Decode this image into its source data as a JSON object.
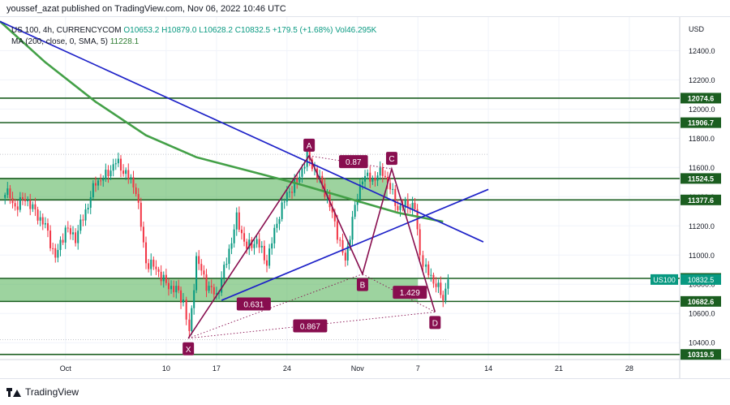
{
  "header": {
    "publisher": "youssef_azat published on TradingView.com, Nov 06, 2022 10:46 UTC"
  },
  "legend": {
    "symbol": "US 100, 4h, CURRENCYCOM",
    "open": "O10653.2",
    "high": "H10879.0",
    "low": "L10628.2",
    "close": "C10832.5",
    "change": "+179.5 (+1.68%)",
    "volume": "Vol46.295K",
    "ma_label": "MA (200, close, 0, SMA, 5)",
    "ma_value": "11228.1"
  },
  "footer": {
    "brand": "TradingView"
  },
  "colors": {
    "up": "#089981",
    "down": "#f23645",
    "zone": "#4caf50",
    "ma": "#43a047",
    "trend": "#1e22c8",
    "pattern": "#880e4f",
    "level_line": "#1b5e20"
  },
  "chart_data": {
    "type": "candlestick",
    "currency": "USD",
    "ylim": [
      10290,
      12630
    ],
    "y_ticks": [
      12400,
      12200,
      12000,
      11800,
      11600,
      11400,
      11200,
      11000,
      10800,
      10600,
      10400
    ],
    "y_tick_labels": [
      "12400.0",
      "12200.0",
      "12000.0",
      "11800.0",
      "11600.0",
      "11400.0",
      "11200.0",
      "11000.0",
      "10800.0",
      "10600.0",
      "10400.0"
    ],
    "x_ticks": [
      {
        "label": "Oct",
        "x": 2
      },
      {
        "label": "10",
        "x": 12
      },
      {
        "label": "17",
        "x": 17
      },
      {
        "label": "24",
        "x": 24
      },
      {
        "label": "Nov",
        "x": 31
      },
      {
        "label": "7",
        "x": 37
      },
      {
        "label": "14",
        "x": 44
      },
      {
        "label": "21",
        "x": 51
      },
      {
        "label": "28",
        "x": 58
      }
    ],
    "xlim": [
      -4.5,
      63
    ],
    "price_levels": [
      {
        "label": "12074.6",
        "value": 12074.6
      },
      {
        "label": "11906.7",
        "value": 11906.7
      },
      {
        "label": "11524.5",
        "value": 11524.5
      },
      {
        "label": "11377.6",
        "value": 11377.6
      },
      {
        "label": "10840.3",
        "value": 10840.3
      },
      {
        "label": "10682.6",
        "value": 10682.6
      },
      {
        "label": "10319.5",
        "value": 10319.5
      }
    ],
    "last_price": {
      "symbol": "US100",
      "label": "10832.5",
      "value": 10832.5
    },
    "zones": [
      {
        "from": 11377.6,
        "to": 11524.5,
        "x_start": -4.5,
        "x_end": 34
      },
      {
        "from": 10682.6,
        "to": 10840.3,
        "x_start": -4.5,
        "x_end": 37
      }
    ],
    "anchors": [
      {
        "x": -4,
        "close": 11450
      },
      {
        "x": -3,
        "close": 11330
      },
      {
        "x": -2,
        "close": 11390
      },
      {
        "x": 0,
        "close": 11200
      },
      {
        "x": 1,
        "close": 10980
      },
      {
        "x": 2,
        "close": 11180
      },
      {
        "x": 3,
        "close": 11120
      },
      {
        "x": 4,
        "close": 11300
      },
      {
        "x": 5,
        "close": 11500
      },
      {
        "x": 6,
        "close": 11540
      },
      {
        "x": 7,
        "close": 11640
      },
      {
        "x": 8,
        "close": 11560
      },
      {
        "x": 9,
        "close": 11450
      },
      {
        "x": 10,
        "close": 10950
      },
      {
        "x": 11,
        "close": 10910
      },
      {
        "x": 12,
        "close": 10800
      },
      {
        "x": 13,
        "close": 10760
      },
      {
        "x": 13.7,
        "close": 10690
      },
      {
        "x": 14.3,
        "close": 10450
      },
      {
        "x": 15,
        "close": 10980
      },
      {
        "x": 16,
        "close": 10800
      },
      {
        "x": 17,
        "close": 10720
      },
      {
        "x": 18,
        "close": 10960
      },
      {
        "x": 19,
        "close": 11250
      },
      {
        "x": 20,
        "close": 11050
      },
      {
        "x": 21,
        "close": 11100
      },
      {
        "x": 22,
        "close": 10950
      },
      {
        "x": 23,
        "close": 11230
      },
      {
        "x": 24,
        "close": 11420
      },
      {
        "x": 25,
        "close": 11500
      },
      {
        "x": 26,
        "close": 11680
      },
      {
        "x": 27,
        "close": 11550
      },
      {
        "x": 28,
        "close": 11400
      },
      {
        "x": 29,
        "close": 11150
      },
      {
        "x": 29.8,
        "close": 10950
      },
      {
        "x": 30.5,
        "close": 11250
      },
      {
        "x": 31.5,
        "close": 11540
      },
      {
        "x": 32.5,
        "close": 11520
      },
      {
        "x": 33.5,
        "close": 11570
      },
      {
        "x": 34,
        "close": 11500
      },
      {
        "x": 35,
        "close": 11320
      },
      {
        "x": 36,
        "close": 11350
      },
      {
        "x": 36.7,
        "close": 11320
      },
      {
        "x": 37.2,
        "close": 11000
      },
      {
        "x": 37.8,
        "close": 10900
      },
      {
        "x": 38.8,
        "close": 10800
      },
      {
        "x": 39.5,
        "close": 10700
      },
      {
        "x": 40,
        "close": 10833
      }
    ],
    "candles_per_day": 4,
    "moving_average": [
      {
        "x": -4.5,
        "y": 12600
      },
      {
        "x": 0,
        "y": 12320
      },
      {
        "x": 5,
        "y": 12050
      },
      {
        "x": 10,
        "y": 11820
      },
      {
        "x": 15,
        "y": 11670
      },
      {
        "x": 20,
        "y": 11580
      },
      {
        "x": 25,
        "y": 11490
      },
      {
        "x": 30,
        "y": 11390
      },
      {
        "x": 35,
        "y": 11290
      },
      {
        "x": 39.5,
        "y": 11228
      }
    ],
    "trendlines": [
      {
        "x1": -4.5,
        "y1": 12600,
        "x2": 43.5,
        "y2": 11090
      },
      {
        "x1": 17.5,
        "y1": 10690,
        "x2": 44,
        "y2": 11450
      }
    ],
    "harmonic_points": [
      {
        "label": "X",
        "x": 14.2,
        "y": 10430
      },
      {
        "label": "A",
        "x": 26.2,
        "y": 11680
      },
      {
        "label": "B",
        "x": 31.5,
        "y": 10870
      },
      {
        "label": "C",
        "x": 34.4,
        "y": 11590
      },
      {
        "label": "D",
        "x": 38.7,
        "y": 10610
      }
    ],
    "ratios": [
      {
        "label": "0.87",
        "x": 30.6,
        "y": 11640
      },
      {
        "label": "0.631",
        "x": 20.7,
        "y": 10665
      },
      {
        "label": "1.429",
        "x": 36.2,
        "y": 10745
      },
      {
        "label": "0.867",
        "x": 26.3,
        "y": 10515
      }
    ]
  }
}
